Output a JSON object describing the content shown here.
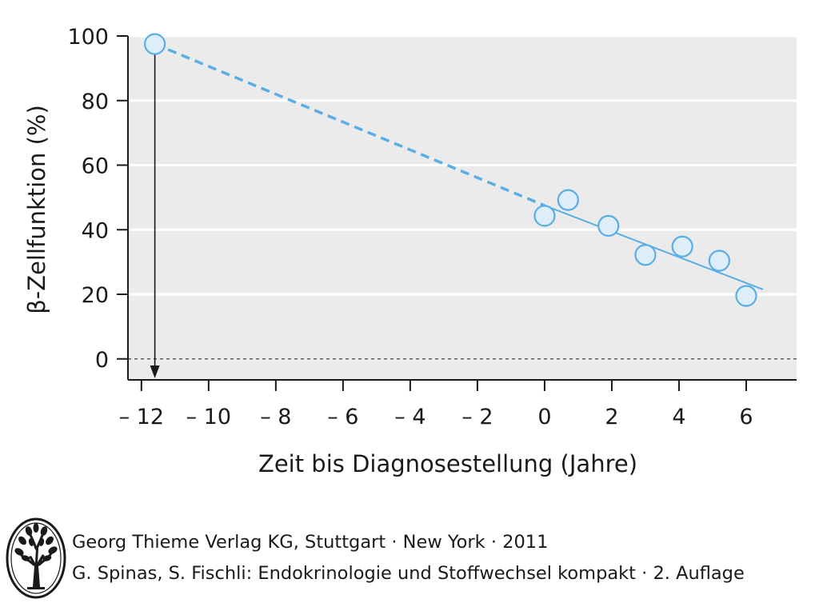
{
  "chart_data": {
    "type": "scatter",
    "ylabel": "β-Zellfunktion (%)",
    "xlabel": "Zeit bis Diagnosestellung (Jahre)",
    "xlim": [
      -12.4,
      7.5
    ],
    "ylim": [
      -6.5,
      100
    ],
    "x_ticks": [
      -12,
      -10,
      -8,
      -6,
      -4,
      -2,
      0,
      2,
      4,
      6
    ],
    "x_tick_labels": [
      "– 12",
      "– 10",
      "– 8",
      "– 6",
      "– 4",
      "– 2",
      "0",
      "2",
      "4",
      "6"
    ],
    "y_ticks": [
      0,
      20,
      40,
      60,
      80,
      100
    ],
    "y_tick_labels": [
      "0",
      "20",
      "40",
      "60",
      "80",
      "100"
    ],
    "grid": true,
    "series": [
      {
        "points": [
          {
            "x": -11.6,
            "y": 97.5
          },
          {
            "x": 0.0,
            "y": 44.3
          },
          {
            "x": 0.7,
            "y": 49.2
          },
          {
            "x": 1.9,
            "y": 41.2
          },
          {
            "x": 3.0,
            "y": 32.2
          },
          {
            "x": 4.1,
            "y": 34.8
          },
          {
            "x": 5.2,
            "y": 30.4
          },
          {
            "x": 6.0,
            "y": 19.5
          }
        ]
      }
    ],
    "trend_solid": {
      "x": [
        0.0,
        6.5
      ],
      "y": [
        47.5,
        21.5
      ]
    },
    "trend_extrapolated": {
      "x": [
        -11.6,
        0.0
      ],
      "y": [
        97.5,
        47.5
      ]
    },
    "reference_line_y": 0,
    "arrow": {
      "x": -11.6,
      "from_y": 97.5,
      "to": "x-axis"
    },
    "colors": {
      "plot_bg": "#ebebeb",
      "grid": "#ffffff",
      "trend": "#5aaee6",
      "marker_fill": "#ddeef9",
      "marker_stroke": "#5aaee6",
      "axis": "#1a1a1a"
    }
  },
  "credits": {
    "line1": "Georg Thieme Verlag KG, Stuttgart · New York · 2011",
    "line2": "G. Spinas, S. Fischli: Endokrinologie und Stoffwechsel kompakt · 2. Auflage",
    "logo_icon": "tree-logo-icon"
  }
}
